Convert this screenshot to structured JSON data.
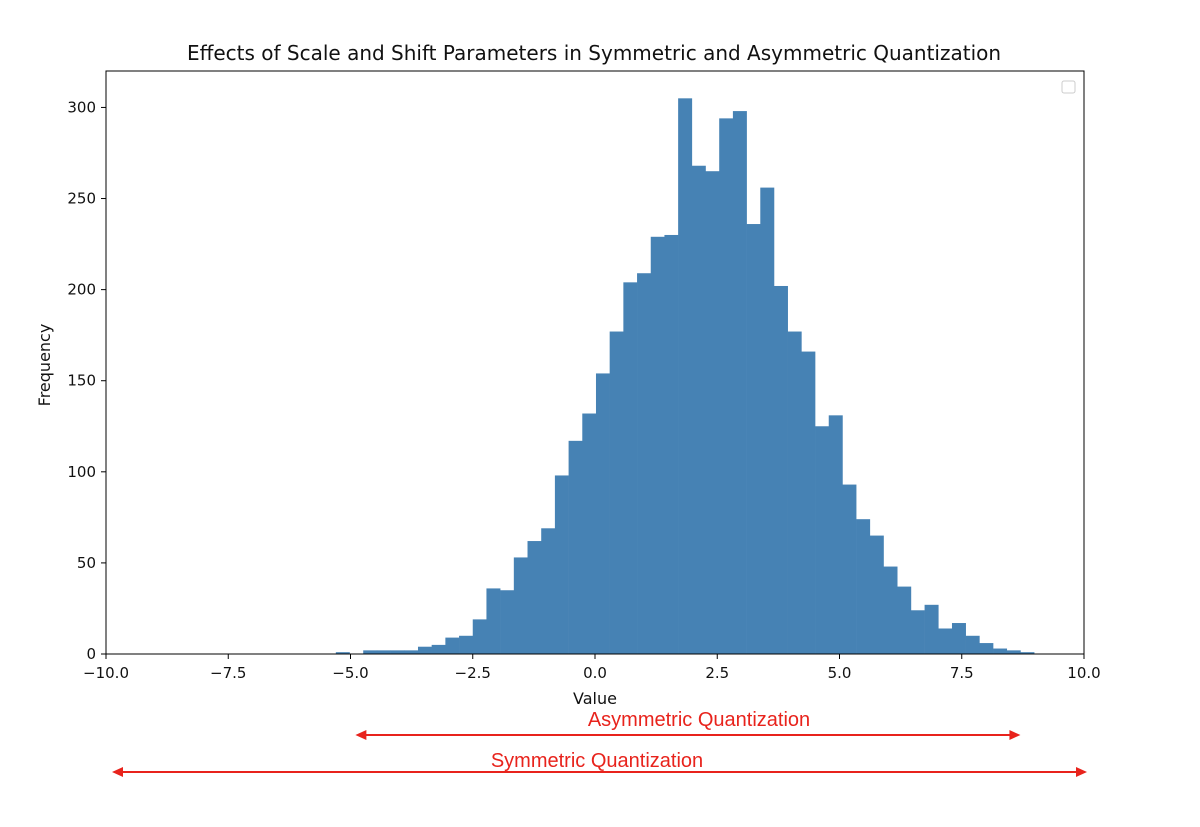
{
  "chart_data": {
    "type": "bar",
    "title": "Effects of Scale and Shift Parameters in Symmetric and Asymmetric Quantization",
    "xlabel": "Value",
    "ylabel": "Frequency",
    "xlim": [
      -10.0,
      10.0
    ],
    "ylim": [
      0,
      320
    ],
    "x_ticks": [
      -10.0,
      -7.5,
      -5.0,
      -2.5,
      0.0,
      2.5,
      5.0,
      7.5,
      10.0
    ],
    "x_tick_labels": [
      "−10.0",
      "−7.5",
      "−5.0",
      "−2.5",
      "0.0",
      "2.5",
      "5.0",
      "7.5",
      "10.0"
    ],
    "y_ticks": [
      0,
      50,
      100,
      150,
      200,
      250,
      300
    ],
    "y_tick_labels": [
      "0",
      "50",
      "100",
      "150",
      "200",
      "250",
      "300"
    ],
    "bar_color": "#4682b4",
    "grid": false,
    "legend": {
      "placement": "top-right",
      "entries": []
    },
    "bins": {
      "start": -5.3,
      "width": 0.28,
      "values": [
        1,
        0,
        2,
        2,
        2,
        2,
        4,
        5,
        9,
        10,
        19,
        36,
        35,
        53,
        62,
        69,
        98,
        117,
        132,
        154,
        177,
        204,
        209,
        229,
        230,
        305,
        268,
        265,
        294,
        298,
        236,
        256,
        202,
        177,
        166,
        125,
        131,
        93,
        74,
        65,
        48,
        37,
        24,
        27,
        14,
        17,
        10,
        6,
        3,
        2,
        1
      ]
    },
    "annotations": [
      {
        "text": "Asymmetric Quantization",
        "color": "#e8231c",
        "x_start": -4.9,
        "x_end": 8.7
      },
      {
        "text": "Symmetric Quantization",
        "color": "#e8231c",
        "x_start": -10.0,
        "x_end": 10.0
      }
    ]
  }
}
